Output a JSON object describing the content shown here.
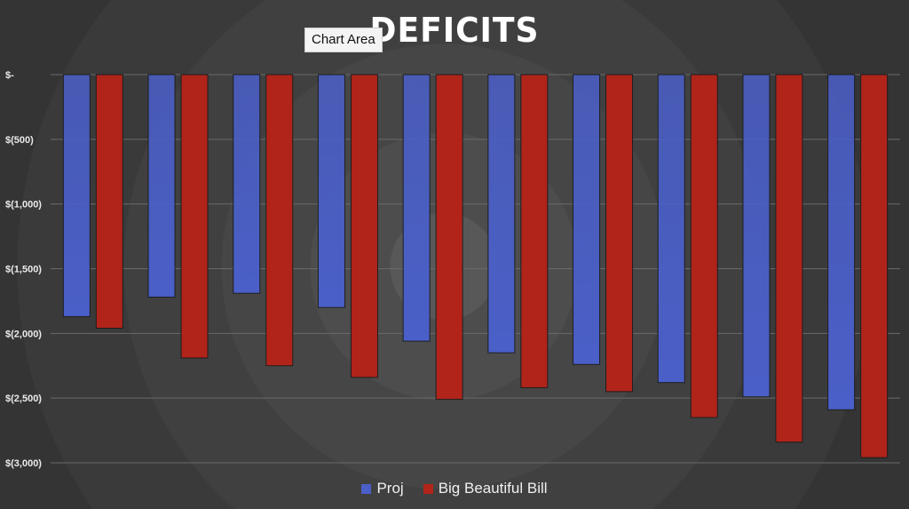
{
  "chart_data": {
    "type": "bar",
    "title": "DEFICITS",
    "tooltip": "Chart Area",
    "xlabel": "",
    "ylabel": "",
    "ylim": [
      -3000,
      0
    ],
    "yticks": [
      0,
      -500,
      -1000,
      -1500,
      -2000,
      -2500,
      -3000
    ],
    "ytick_labels": [
      "$-",
      "$(500)",
      "$(1,000)",
      "$(1,500)",
      "$(2,000)",
      "$(2,500)",
      "$(3,000)"
    ],
    "grid": true,
    "legend_position": "bottom",
    "series": [
      {
        "name": "Proj",
        "color": "#4a5fc8",
        "values": [
          -1870,
          -1720,
          -1690,
          -1800,
          -2060,
          -2150,
          -2240,
          -2380,
          -2490,
          -2590
        ]
      },
      {
        "name": "Big Beautiful Bill",
        "color": "#b0241a",
        "values": [
          -1960,
          -2190,
          -2250,
          -2340,
          -2510,
          -2420,
          -2450,
          -2650,
          -2840,
          -2960
        ]
      }
    ]
  }
}
